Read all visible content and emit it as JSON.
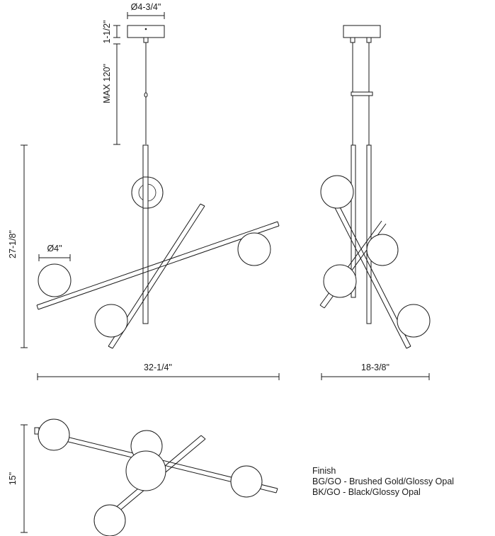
{
  "dimensions": {
    "canopy_diameter": "Ø4-3/4\"",
    "canopy_height": "1-1/2\"",
    "max_drop": "MAX 120\"",
    "fixture_height": "27-1/8\"",
    "globe_diameter": "Ø4\"",
    "front_width": "32-1/4\"",
    "side_width": "18-3/8\"",
    "top_depth": "15\""
  },
  "finish": {
    "heading": "Finish",
    "options": [
      "BG/GO - Brushed Gold/Glossy Opal",
      "BK/GO - Black/Glossy Opal"
    ]
  },
  "colors": {
    "line": "#1a1a1a",
    "background": "#ffffff"
  }
}
